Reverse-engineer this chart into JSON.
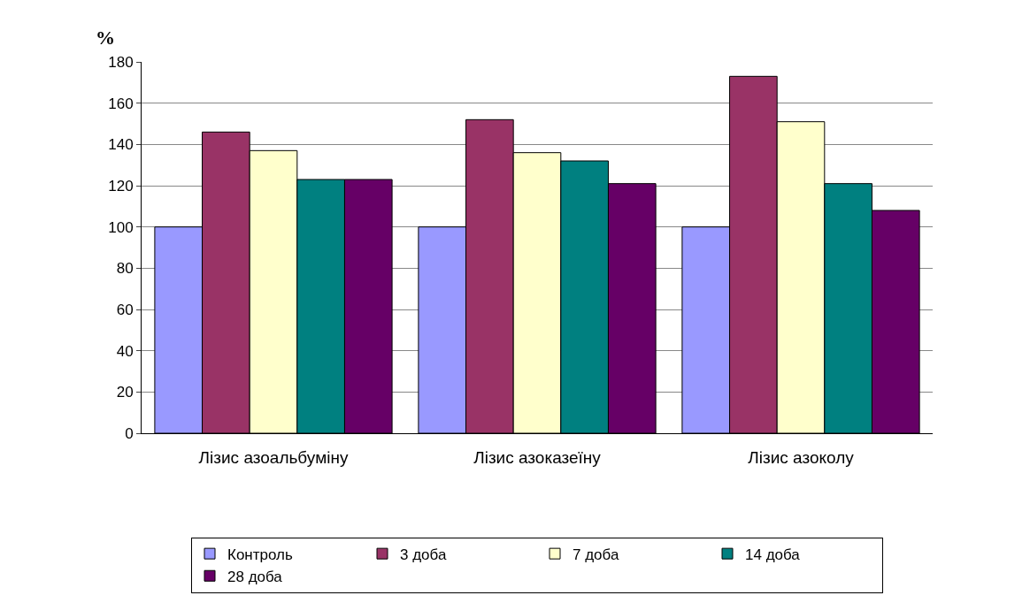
{
  "chart_data": {
    "type": "bar",
    "ylabel": "%",
    "categories": [
      "Лізис азоальбуміну",
      "Лізис азоказеїну",
      "Лізис азоколу"
    ],
    "series": [
      {
        "name": "Контроль",
        "color": "#9999ff",
        "values": [
          100,
          100,
          100
        ]
      },
      {
        "name": "3 доба",
        "color": "#993366",
        "values": [
          146,
          152,
          173
        ]
      },
      {
        "name": "7 доба",
        "color": "#ffffcc",
        "values": [
          137,
          136,
          151
        ]
      },
      {
        "name": "14 доба",
        "color": "#008080",
        "values": [
          123,
          132,
          121
        ]
      },
      {
        "name": "28 доба",
        "color": "#660066",
        "values": [
          123,
          121,
          108
        ]
      }
    ],
    "ylim": [
      0,
      180
    ],
    "yticks": [
      0,
      20,
      40,
      60,
      80,
      100,
      120,
      140,
      160,
      180
    ],
    "grid": "y",
    "legend": "bottom"
  }
}
